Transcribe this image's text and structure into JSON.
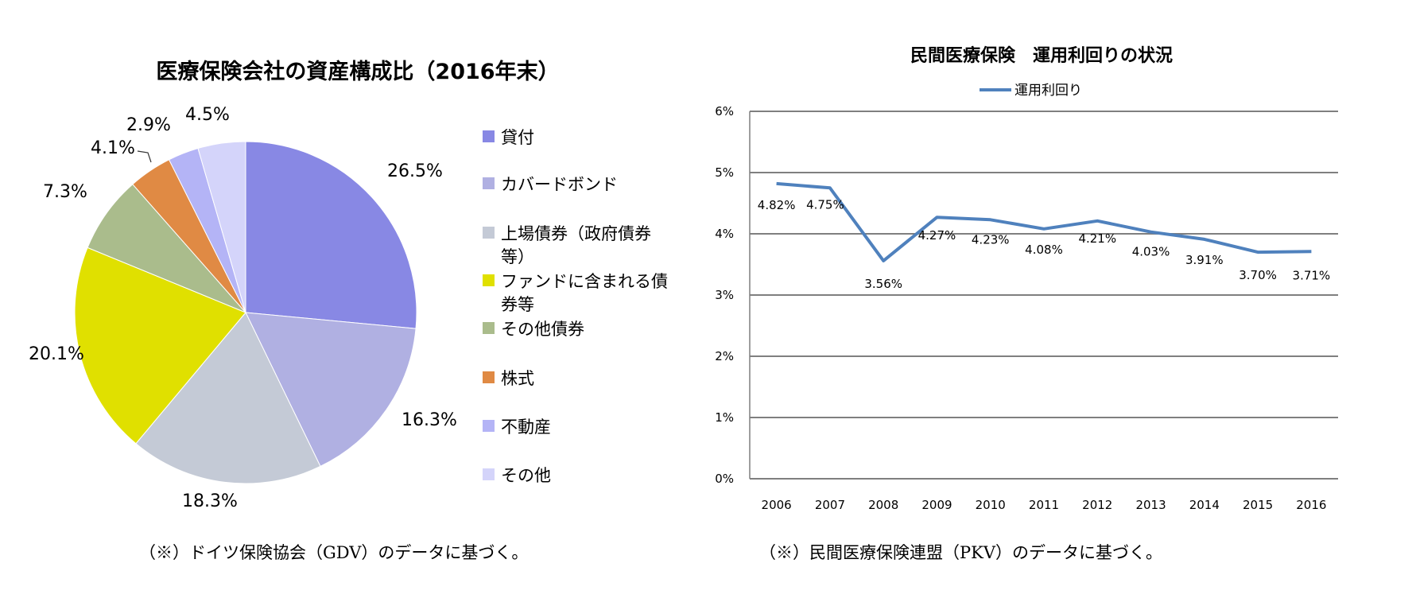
{
  "chart_data": [
    {
      "type": "pie",
      "title": "医療保険会社の資産構成比（2016年末）",
      "categories": [
        "貸付",
        "カバードボンド",
        "上場債券（政府債券等）",
        "ファンドに含まれる債券等",
        "その他債券",
        "株式",
        "不動産",
        "その他"
      ],
      "legend_lines": [
        [
          "貸付"
        ],
        [
          "カバードボンド"
        ],
        [
          "上場債券（政府債券",
          "等）"
        ],
        [
          "ファンドに含まれる債",
          "券等"
        ],
        [
          "その他債券"
        ],
        [
          "株式"
        ],
        [
          "不動産"
        ],
        [
          "その他"
        ]
      ],
      "values": [
        26.5,
        16.3,
        18.3,
        20.1,
        7.3,
        4.1,
        2.9,
        4.5
      ],
      "labels": [
        "26.5%",
        "16.3%",
        "18.3%",
        "20.1%",
        "7.3%",
        "4.1%",
        "2.9%",
        "4.5%"
      ],
      "colors": [
        "#8888e4",
        "#b0b0e2",
        "#c4cad6",
        "#e0e000",
        "#aabc8c",
        "#e08a44",
        "#b4b4f6",
        "#d4d4fa"
      ],
      "legend_position": "right",
      "note": "（※）ドイツ保険協会（GDV）のデータに基づく。"
    },
    {
      "type": "line",
      "title": "民間医療保険　運用利回りの状況",
      "legend": [
        "運用利回り"
      ],
      "x": [
        "2006",
        "2007",
        "2008",
        "2009",
        "2010",
        "2011",
        "2012",
        "2013",
        "2014",
        "2015",
        "2016"
      ],
      "series": [
        {
          "name": "運用利回り",
          "values": [
            4.82,
            4.75,
            3.56,
            4.27,
            4.23,
            4.08,
            4.21,
            4.03,
            3.91,
            3.7,
            3.71
          ]
        }
      ],
      "data_labels": [
        "4.82%",
        "4.75%",
        "3.56%",
        "4.27%",
        "4.23%",
        "4.08%",
        "4.21%",
        "4.03%",
        "3.91%",
        "3.70%",
        "3.71%"
      ],
      "y_ticks": [
        "0%",
        "1%",
        "2%",
        "3%",
        "4%",
        "5%",
        "6%"
      ],
      "ylim": [
        0,
        6
      ],
      "grid": true,
      "line_color": "#4f81bd",
      "note": "（※）民間医療保険連盟（PKV）のデータに基づく。"
    }
  ]
}
